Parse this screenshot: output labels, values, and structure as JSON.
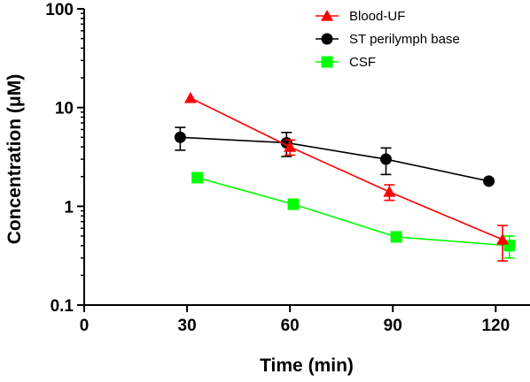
{
  "chart_data": {
    "type": "line",
    "xlabel": "Time (min)",
    "ylabel": "Concentration (μM)",
    "xlim": [
      0,
      130
    ],
    "ylim": [
      0.1,
      100
    ],
    "yscale": "log",
    "x_ticks": [
      0,
      30,
      60,
      90,
      120
    ],
    "y_ticks": [
      0.1,
      1,
      10,
      100
    ],
    "x_tick_labels": [
      "0",
      "30",
      "60",
      "90",
      "120"
    ],
    "y_tick_labels": [
      "0.1",
      "1",
      "10",
      "100"
    ],
    "legend_position": "top-right",
    "grid": false,
    "series": [
      {
        "name": "Blood-UF",
        "color": "#ff0000",
        "marker": "triangle",
        "x": [
          31,
          60,
          89,
          122
        ],
        "y": [
          12.5,
          4.0,
          1.4,
          0.46
        ],
        "error": [
          null,
          0.7,
          0.25,
          0.18
        ]
      },
      {
        "name": "ST perilymph base",
        "color": "#000000",
        "marker": "circle",
        "x": [
          28,
          59,
          88,
          118
        ],
        "y": [
          5.0,
          4.4,
          3.0,
          1.8
        ],
        "error": [
          1.3,
          1.2,
          0.9,
          null
        ]
      },
      {
        "name": "CSF",
        "color": "#00ff00",
        "marker": "square",
        "x": [
          33,
          61,
          91,
          124
        ],
        "y": [
          1.95,
          1.05,
          0.49,
          0.4
        ],
        "error": [
          null,
          null,
          null,
          0.1
        ]
      }
    ]
  }
}
